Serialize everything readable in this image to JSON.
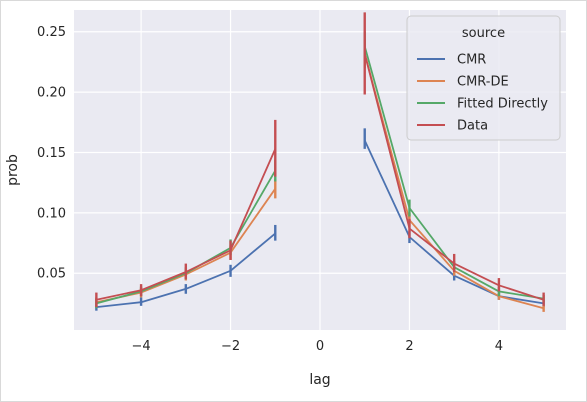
{
  "chart_data": {
    "type": "line",
    "xlabel": "lag",
    "ylabel": "prob",
    "xlim": [
      -5.5,
      5.5
    ],
    "ylim": [
      0.003,
      0.268
    ],
    "xticks": [
      -4,
      -2,
      0,
      2,
      4
    ],
    "xtick_labels": [
      "−4",
      "−2",
      "0",
      "2",
      "4"
    ],
    "yticks": [
      0.05,
      0.1,
      0.15,
      0.2,
      0.25
    ],
    "ytick_labels": [
      "0.05",
      "0.10",
      "0.15",
      "0.20",
      "0.25"
    ],
    "grid": true,
    "legend": {
      "title": "source",
      "placement": "top-right"
    },
    "series": [
      {
        "name": "CMR",
        "color": "#4c72b0",
        "segments": [
          [
            {
              "x": -5,
              "y": 0.022,
              "lo": 0.019,
              "hi": 0.025
            },
            {
              "x": -4,
              "y": 0.026,
              "lo": 0.023,
              "hi": 0.03
            },
            {
              "x": -3,
              "y": 0.037,
              "lo": 0.033,
              "hi": 0.041
            },
            {
              "x": -2,
              "y": 0.052,
              "lo": 0.047,
              "hi": 0.057
            },
            {
              "x": -1,
              "y": 0.083,
              "lo": 0.077,
              "hi": 0.09
            }
          ],
          [
            {
              "x": 1,
              "y": 0.16,
              "lo": 0.153,
              "hi": 0.17
            },
            {
              "x": 2,
              "y": 0.08,
              "lo": 0.075,
              "hi": 0.085
            },
            {
              "x": 3,
              "y": 0.048,
              "lo": 0.044,
              "hi": 0.052
            },
            {
              "x": 4,
              "y": 0.031,
              "lo": 0.028,
              "hi": 0.034
            },
            {
              "x": 5,
              "y": 0.025,
              "lo": 0.022,
              "hi": 0.028
            }
          ]
        ]
      },
      {
        "name": "CMR-DE",
        "color": "#dd8452",
        "segments": [
          [
            {
              "x": -5,
              "y": 0.026,
              "lo": 0.022,
              "hi": 0.03
            },
            {
              "x": -4,
              "y": 0.034,
              "lo": 0.03,
              "hi": 0.038
            },
            {
              "x": -3,
              "y": 0.049,
              "lo": 0.044,
              "hi": 0.054
            },
            {
              "x": -2,
              "y": 0.067,
              "lo": 0.061,
              "hi": 0.073
            },
            {
              "x": -1,
              "y": 0.12,
              "lo": 0.112,
              "hi": 0.128
            }
          ],
          [
            {
              "x": 1,
              "y": 0.232,
              "lo": 0.22,
              "hi": 0.244
            },
            {
              "x": 2,
              "y": 0.094,
              "lo": 0.088,
              "hi": 0.1
            },
            {
              "x": 3,
              "y": 0.052,
              "lo": 0.048,
              "hi": 0.056
            },
            {
              "x": 4,
              "y": 0.031,
              "lo": 0.028,
              "hi": 0.034
            },
            {
              "x": 5,
              "y": 0.021,
              "lo": 0.018,
              "hi": 0.024
            }
          ]
        ]
      },
      {
        "name": "Fitted Directly",
        "color": "#55a868",
        "segments": [
          [
            {
              "x": -5,
              "y": 0.025,
              "lo": 0.021,
              "hi": 0.029
            },
            {
              "x": -4,
              "y": 0.035,
              "lo": 0.031,
              "hi": 0.039
            },
            {
              "x": -3,
              "y": 0.05,
              "lo": 0.045,
              "hi": 0.055
            },
            {
              "x": -2,
              "y": 0.071,
              "lo": 0.065,
              "hi": 0.078
            },
            {
              "x": -1,
              "y": 0.135,
              "lo": 0.126,
              "hi": 0.144
            }
          ],
          [
            {
              "x": 1,
              "y": 0.238,
              "lo": 0.226,
              "hi": 0.25
            },
            {
              "x": 2,
              "y": 0.104,
              "lo": 0.097,
              "hi": 0.111
            },
            {
              "x": 3,
              "y": 0.055,
              "lo": 0.051,
              "hi": 0.06
            },
            {
              "x": 4,
              "y": 0.035,
              "lo": 0.031,
              "hi": 0.039
            },
            {
              "x": 5,
              "y": 0.029,
              "lo": 0.026,
              "hi": 0.032
            }
          ]
        ]
      },
      {
        "name": "Data",
        "color": "#c44e52",
        "segments": [
          [
            {
              "x": -5,
              "y": 0.028,
              "lo": 0.022,
              "hi": 0.034
            },
            {
              "x": -4,
              "y": 0.036,
              "lo": 0.031,
              "hi": 0.041
            },
            {
              "x": -3,
              "y": 0.051,
              "lo": 0.045,
              "hi": 0.058
            },
            {
              "x": -2,
              "y": 0.069,
              "lo": 0.061,
              "hi": 0.077
            },
            {
              "x": -1,
              "y": 0.153,
              "lo": 0.13,
              "hi": 0.177
            }
          ],
          [
            {
              "x": 1,
              "y": 0.232,
              "lo": 0.198,
              "hi": 0.266
            },
            {
              "x": 2,
              "y": 0.087,
              "lo": 0.079,
              "hi": 0.095
            },
            {
              "x": 3,
              "y": 0.058,
              "lo": 0.051,
              "hi": 0.066
            },
            {
              "x": 4,
              "y": 0.04,
              "lo": 0.035,
              "hi": 0.046
            },
            {
              "x": 5,
              "y": 0.028,
              "lo": 0.023,
              "hi": 0.034
            }
          ]
        ]
      }
    ]
  }
}
